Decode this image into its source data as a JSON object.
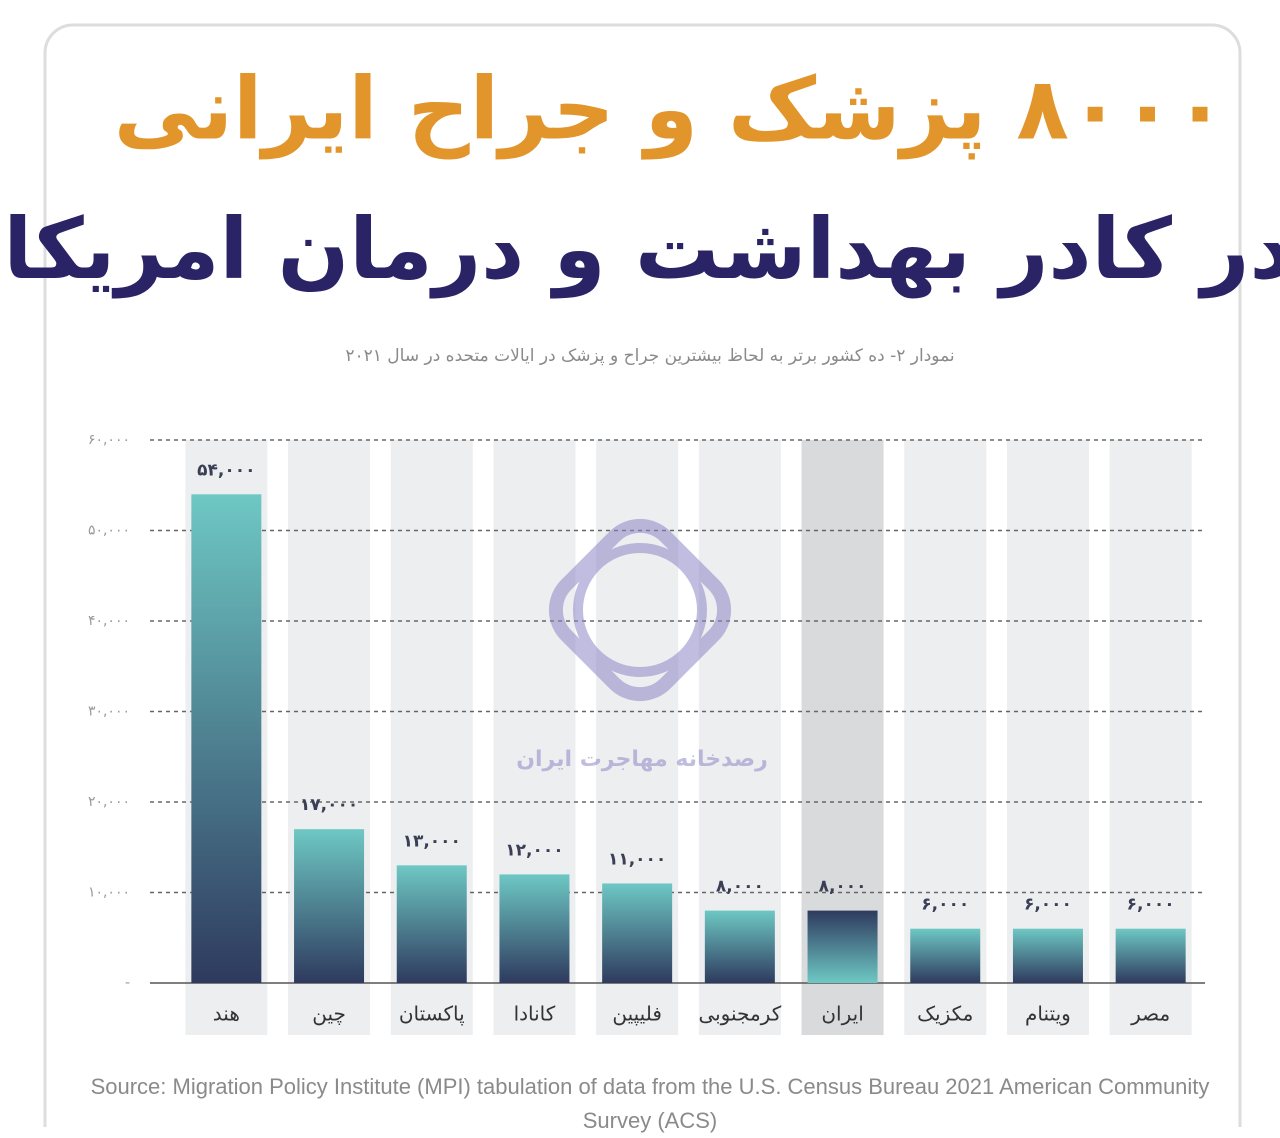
{
  "chart_data": {
    "type": "bar",
    "title": "۸۰۰۰ پزشک و جراح ایرانی",
    "subtitle": "در کادر بهداشت و درمان امریکا",
    "caption": "نمودار ۲- ده کشور برتر به لحاظ بیشترین جراح و پزشک در ایالات متحده در سال ۲۰۲۱",
    "categories": [
      "هند",
      "چین",
      "پاکستان",
      "کانادا",
      "فلیپین",
      "کرمجنوبی",
      "ایران",
      "مکزیک",
      "ویتنام",
      "مصر"
    ],
    "values": [
      54000,
      17000,
      13000,
      12000,
      11000,
      8000,
      8000,
      6000,
      6000,
      6000
    ],
    "value_labels": [
      "۵۴,۰۰۰",
      "۱۷,۰۰۰",
      "۱۳,۰۰۰",
      "۱۲,۰۰۰",
      "۱۱,۰۰۰",
      "۸,۰۰۰",
      "۸,۰۰۰",
      "۶,۰۰۰",
      "۶,۰۰۰",
      "۶,۰۰۰"
    ],
    "colors": [
      "#6ec8c4",
      "#2e3a5e"
    ],
    "highlight_index": 6,
    "ylim": [
      0,
      60000
    ],
    "yticks": [
      {
        "value": 0,
        "label": "-"
      },
      {
        "value": 10000,
        "label": "۱۰,۰۰۰"
      },
      {
        "value": 20000,
        "label": "۲۰,۰۰۰"
      },
      {
        "value": 30000,
        "label": "۳۰,۰۰۰"
      },
      {
        "value": 40000,
        "label": "۴۰,۰۰۰"
      },
      {
        "value": 50000,
        "label": "۵۰,۰۰۰"
      },
      {
        "value": 60000,
        "label": "۶۰,۰۰۰"
      }
    ],
    "grid": true,
    "watermark": "رصدخانه مهاجرت ایران",
    "source": "Source: Migration Policy Institute (MPI) tabulation of data from the U.S. Census Bureau 2021 American Community Survey (ACS)"
  }
}
